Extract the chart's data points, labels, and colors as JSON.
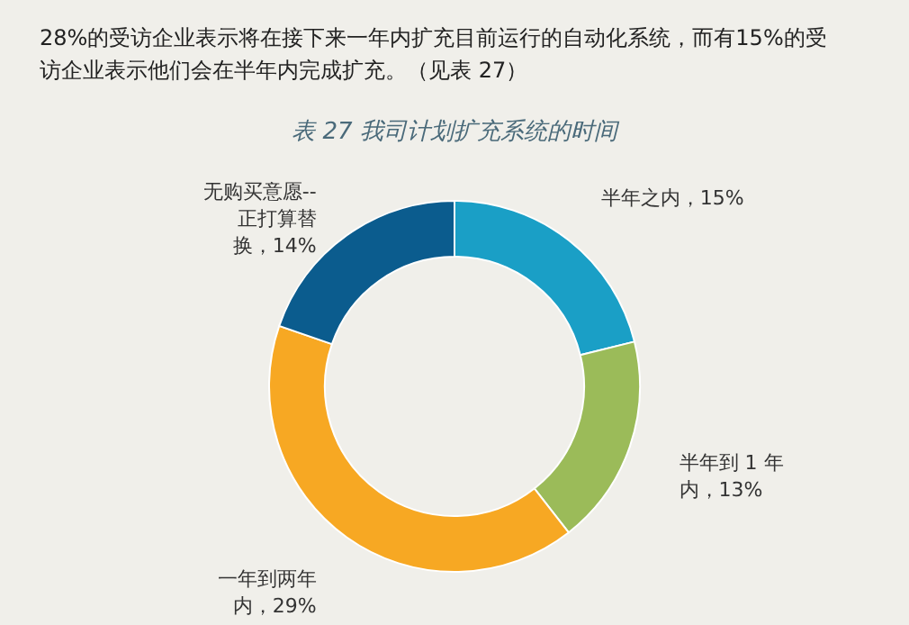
{
  "chart_data": {
    "type": "donut",
    "title": "表 27 我司计划扩充系统的时间",
    "annotations": [
      "28%的受访企业表示将在接下来一年内扩充目前运行的自动化系统，而有15%的受访企业表示他们会在半年内完成扩充。（见表 27）"
    ],
    "categories": [
      "半年之内",
      "半年到 1 年内",
      "一年到两年内",
      "无购买意愿--正打算替换"
    ],
    "values": [
      15,
      13,
      29,
      14
    ],
    "value_labels": [
      "15%",
      "13%",
      "29%",
      "14%"
    ],
    "colors": [
      "#1a9fc6",
      "#9bbb59",
      "#f7a823",
      "#0b5c8e"
    ]
  }
}
